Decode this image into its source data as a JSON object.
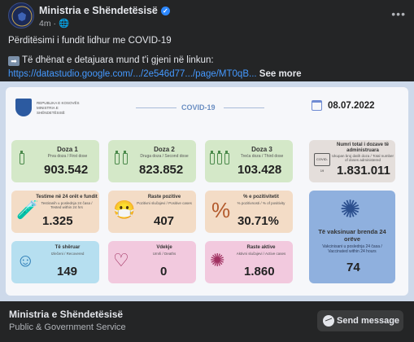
{
  "post": {
    "page_name": "Ministria e Shëndetësisë",
    "time": "4m",
    "text_line1": "Përditësimi i fundit lidhur me COVID-19",
    "text_line2": "Të dhënat e detajuara mund t'i gjeni në linkun:",
    "link": "https://datastudio.google.com/.../2e546d77.../page/MT0qB...",
    "see_more": "See more"
  },
  "infographic": {
    "ministry_name": "REPUBLIKA E KOSOVËS MINISTRIA E SHËNDETËSISË",
    "covid_label": "COVID-19",
    "date": "08.07.2022",
    "cards": {
      "dose1": {
        "title": "Doza 1",
        "subtitle": "Prva doza / First dose",
        "value": "903.542"
      },
      "dose2": {
        "title": "Doza 2",
        "subtitle": "Druga doza / Second dose",
        "value": "823.852"
      },
      "dose3": {
        "title": "Doza 3",
        "subtitle": "Treća doza / Third dose",
        "value": "103.428"
      },
      "total": {
        "title": "Numri total i dozave të administruara",
        "subtitle": "Ukupan broj datih doza / Total number of doses administered",
        "value": "1.831.011"
      },
      "tests": {
        "title": "Testime në 24 orët e fundit",
        "subtitle": "Testiranih u poslednja 24 časa / Tested within 24 hrs",
        "value": "1.325"
      },
      "positive": {
        "title": "Raste pozitive",
        "subtitle": "Pozitivni slučajevi / Positive cases",
        "value": "407"
      },
      "positivity": {
        "title": "% e pozitivitetit",
        "subtitle": "% pozitivnosti / % of positivity",
        "value": "30.71%"
      },
      "vaccinated24": {
        "title": "Të vaksinuar brenda 24 orëve",
        "subtitle": "Vakcinisani u poslednja 24 časa / Vaccinated within 24 hours",
        "value": "74"
      },
      "recovered": {
        "title": "Të shëruar",
        "subtitle": "Izlečeni / Recovered",
        "value": "149"
      },
      "deaths": {
        "title": "Vdekje",
        "subtitle": "Umrli / Deaths",
        "value": "0"
      },
      "active": {
        "title": "Raste aktive",
        "subtitle": "Aktivni slučajevi / Active cases",
        "value": "1.860"
      }
    }
  },
  "footer": {
    "page_name": "Ministria e Shëndetësisë",
    "category": "Public & Government Service",
    "send_label": "Send message"
  }
}
